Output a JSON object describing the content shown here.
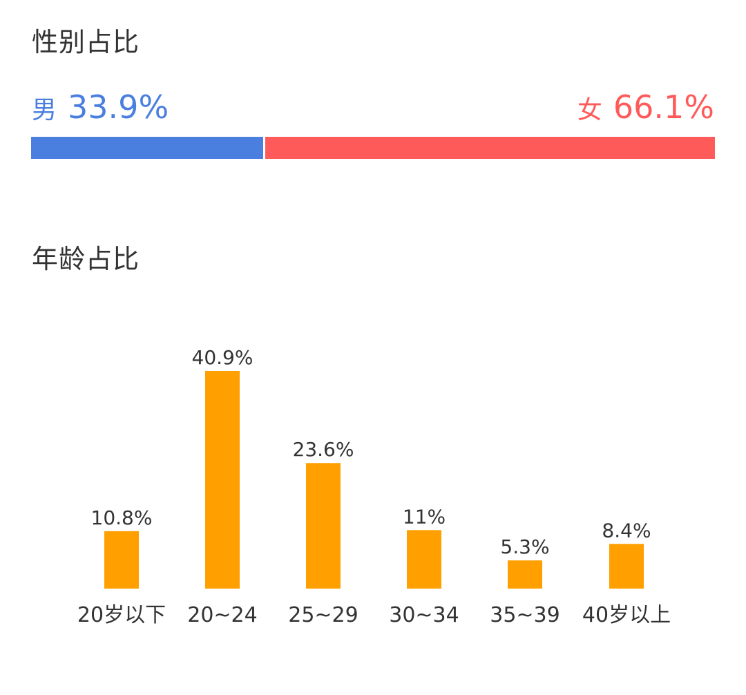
{
  "gender": {
    "title": "性别占比",
    "male": {
      "name": "男",
      "value_label": "33.9%",
      "value": 33.9,
      "color": "#4a7fe0"
    },
    "female": {
      "name": "女",
      "value_label": "66.1%",
      "value": 66.1,
      "color": "#ff5a5a"
    }
  },
  "age": {
    "title": "年龄占比"
  },
  "chart_data": {
    "type": "bar",
    "categories": [
      "20岁以下",
      "20~24",
      "25~29",
      "30~34",
      "35~39",
      "40岁以上"
    ],
    "values": [
      10.8,
      40.9,
      23.6,
      11,
      5.3,
      8.4
    ],
    "value_labels": [
      "10.8%",
      "40.9%",
      "23.6%",
      "11%",
      "5.3%",
      "8.4%"
    ],
    "title": "",
    "xlabel": "",
    "ylabel": "",
    "ylim": [
      0,
      40.9
    ],
    "grid": false,
    "bar_color": "#ffa000"
  }
}
